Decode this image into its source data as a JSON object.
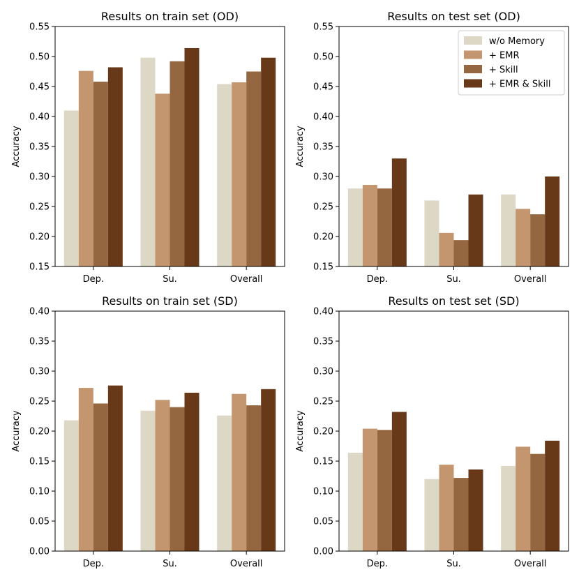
{
  "chart_data": [
    {
      "type": "bar",
      "title": "Results on train set (OD)",
      "ylabel": "Accuracy",
      "xlabel": "",
      "ylim": [
        0.15,
        0.55
      ],
      "yticks": [
        "0.15",
        "0.20",
        "0.25",
        "0.30",
        "0.35",
        "0.40",
        "0.45",
        "0.50",
        "0.55"
      ],
      "categories": [
        "Dep.",
        "Su.",
        "Overall"
      ],
      "series": [
        {
          "name": "w/o Memory",
          "values": [
            0.41,
            0.498,
            0.454
          ]
        },
        {
          "name": "+ EMR",
          "values": [
            0.476,
            0.438,
            0.457
          ]
        },
        {
          "name": "+ Skill",
          "values": [
            0.458,
            0.492,
            0.475
          ]
        },
        {
          "name": "+ EMR & Skill",
          "values": [
            0.482,
            0.514,
            0.498
          ]
        }
      ],
      "legend": false
    },
    {
      "type": "bar",
      "title": "Results on test set (OD)",
      "ylabel": "Accuracy",
      "xlabel": "",
      "ylim": [
        0.15,
        0.55
      ],
      "yticks": [
        "0.15",
        "0.20",
        "0.25",
        "0.30",
        "0.35",
        "0.40",
        "0.45",
        "0.50",
        "0.55"
      ],
      "categories": [
        "Dep.",
        "Su.",
        "Overall"
      ],
      "series": [
        {
          "name": "w/o Memory",
          "values": [
            0.28,
            0.26,
            0.27
          ]
        },
        {
          "name": "+ EMR",
          "values": [
            0.286,
            0.206,
            0.246
          ]
        },
        {
          "name": "+ Skill",
          "values": [
            0.28,
            0.194,
            0.237
          ]
        },
        {
          "name": "+ EMR & Skill",
          "values": [
            0.33,
            0.27,
            0.3
          ]
        }
      ],
      "legend": true,
      "legend_position": "top-right"
    },
    {
      "type": "bar",
      "title": "Results on train set (SD)",
      "ylabel": "Accuracy",
      "xlabel": "",
      "ylim": [
        0.0,
        0.4
      ],
      "yticks": [
        "0.00",
        "0.05",
        "0.10",
        "0.15",
        "0.20",
        "0.25",
        "0.30",
        "0.35",
        "0.40"
      ],
      "categories": [
        "Dep.",
        "Su.",
        "Overall"
      ],
      "series": [
        {
          "name": "w/o Memory",
          "values": [
            0.218,
            0.234,
            0.226
          ]
        },
        {
          "name": "+ EMR",
          "values": [
            0.272,
            0.252,
            0.262
          ]
        },
        {
          "name": "+ Skill",
          "values": [
            0.246,
            0.24,
            0.243
          ]
        },
        {
          "name": "+ EMR & Skill",
          "values": [
            0.276,
            0.264,
            0.27
          ]
        }
      ],
      "legend": false
    },
    {
      "type": "bar",
      "title": "Results on test set (SD)",
      "ylabel": "Accuracy",
      "xlabel": "",
      "ylim": [
        0.0,
        0.4
      ],
      "yticks": [
        "0.00",
        "0.05",
        "0.10",
        "0.15",
        "0.20",
        "0.25",
        "0.30",
        "0.35",
        "0.40"
      ],
      "categories": [
        "Dep.",
        "Su.",
        "Overall"
      ],
      "series": [
        {
          "name": "w/o Memory",
          "values": [
            0.164,
            0.12,
            0.142
          ]
        },
        {
          "name": "+ EMR",
          "values": [
            0.204,
            0.144,
            0.174
          ]
        },
        {
          "name": "+ Skill",
          "values": [
            0.202,
            0.122,
            0.162
          ]
        },
        {
          "name": "+ EMR & Skill",
          "values": [
            0.232,
            0.136,
            0.184
          ]
        }
      ],
      "legend": false
    }
  ],
  "colors": {
    "w/o Memory": "#ddd8c6",
    "+ EMR": "#c49670",
    "+ Skill": "#956740",
    "+ EMR & Skill": "#673919"
  }
}
